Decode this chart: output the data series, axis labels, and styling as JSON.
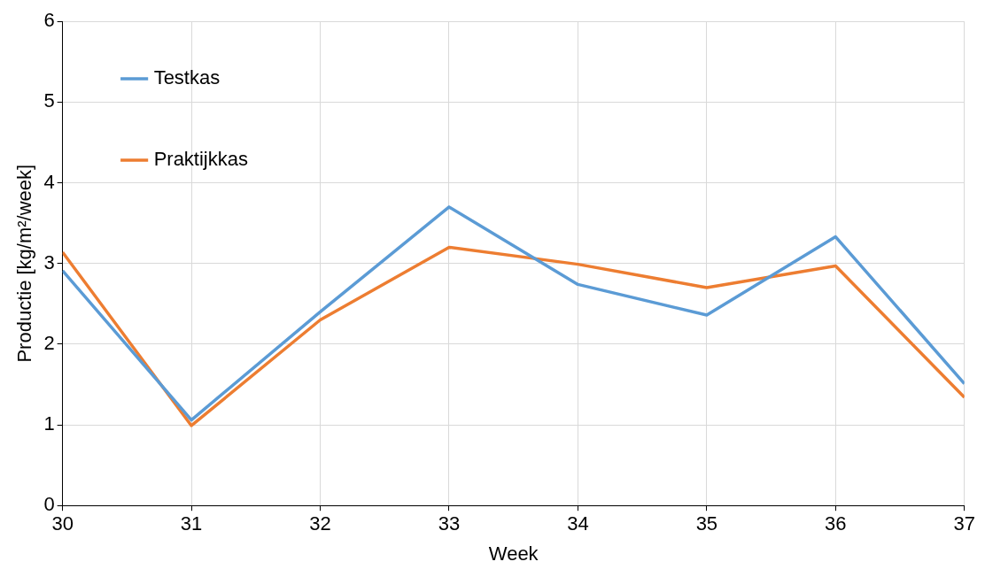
{
  "chart_data": {
    "type": "line",
    "xlabel": "Week",
    "ylabel": "Productie [kg/m²/week]",
    "x": [
      30,
      31,
      32,
      33,
      34,
      35,
      36,
      37
    ],
    "series": [
      {
        "name": "Testkas",
        "color": "#5b9bd5",
        "values": [
          2.91,
          1.06,
          2.4,
          3.7,
          2.74,
          2.36,
          3.33,
          1.51
        ]
      },
      {
        "name": "Praktijkkas",
        "color": "#ed7d31",
        "values": [
          3.14,
          0.99,
          2.3,
          3.2,
          2.99,
          2.7,
          2.97,
          1.34
        ]
      }
    ],
    "xlim": [
      30,
      37
    ],
    "xticks": [
      30,
      31,
      32,
      33,
      34,
      35,
      36,
      37
    ],
    "ylim": [
      0,
      6
    ],
    "yticks": [
      0,
      1,
      2,
      3,
      4,
      5,
      6
    ],
    "grid": true,
    "legend": "top left",
    "marker": "none",
    "line_style": "solid"
  }
}
